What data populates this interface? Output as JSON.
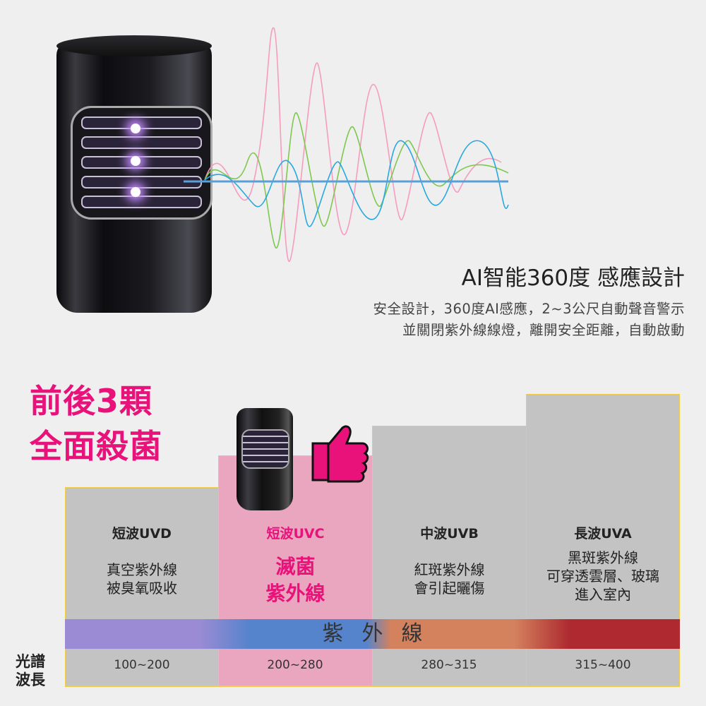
{
  "feature": {
    "title": "AI智能360度 感應設計",
    "lines": [
      "安全設計，360度AI感應，2~3公尺自動聲音警示",
      "並關閉紫外線線燈，離開安全距離，自動啟動"
    ]
  },
  "headline": {
    "line1": "前後3顆",
    "line2": "全面殺菌"
  },
  "columns": [
    {
      "name": "短波UVD",
      "desc": [
        "真空紫外線",
        "被臭氧吸收"
      ],
      "range": "100~200"
    },
    {
      "name": "短波UVC",
      "desc": [
        "滅菌",
        "紫外線"
      ],
      "range": "200~280",
      "highlight": true
    },
    {
      "name": "中波UVB",
      "desc": [
        "紅斑紫外線",
        "會引起曬傷"
      ],
      "range": "280~315"
    },
    {
      "name": "長波UVA",
      "desc": [
        "黑斑紫外線",
        "可穿透雲層、玻璃",
        "進入室內"
      ],
      "range": "315~400"
    }
  ],
  "band_label": "紫外線",
  "axis_label": {
    "line1": "光譜",
    "line2": "波長"
  },
  "colors": {
    "accent": "#e8127a",
    "highlight_column": "#eba6bf",
    "column": "#c3c3c3",
    "border": "#f0cc4a",
    "uvd": "#9a8bd4",
    "uvc": "#5584cc",
    "uvb": "#d4825e",
    "uva": "#ae2a30"
  },
  "icons": [
    "thumbs-up-icon"
  ]
}
